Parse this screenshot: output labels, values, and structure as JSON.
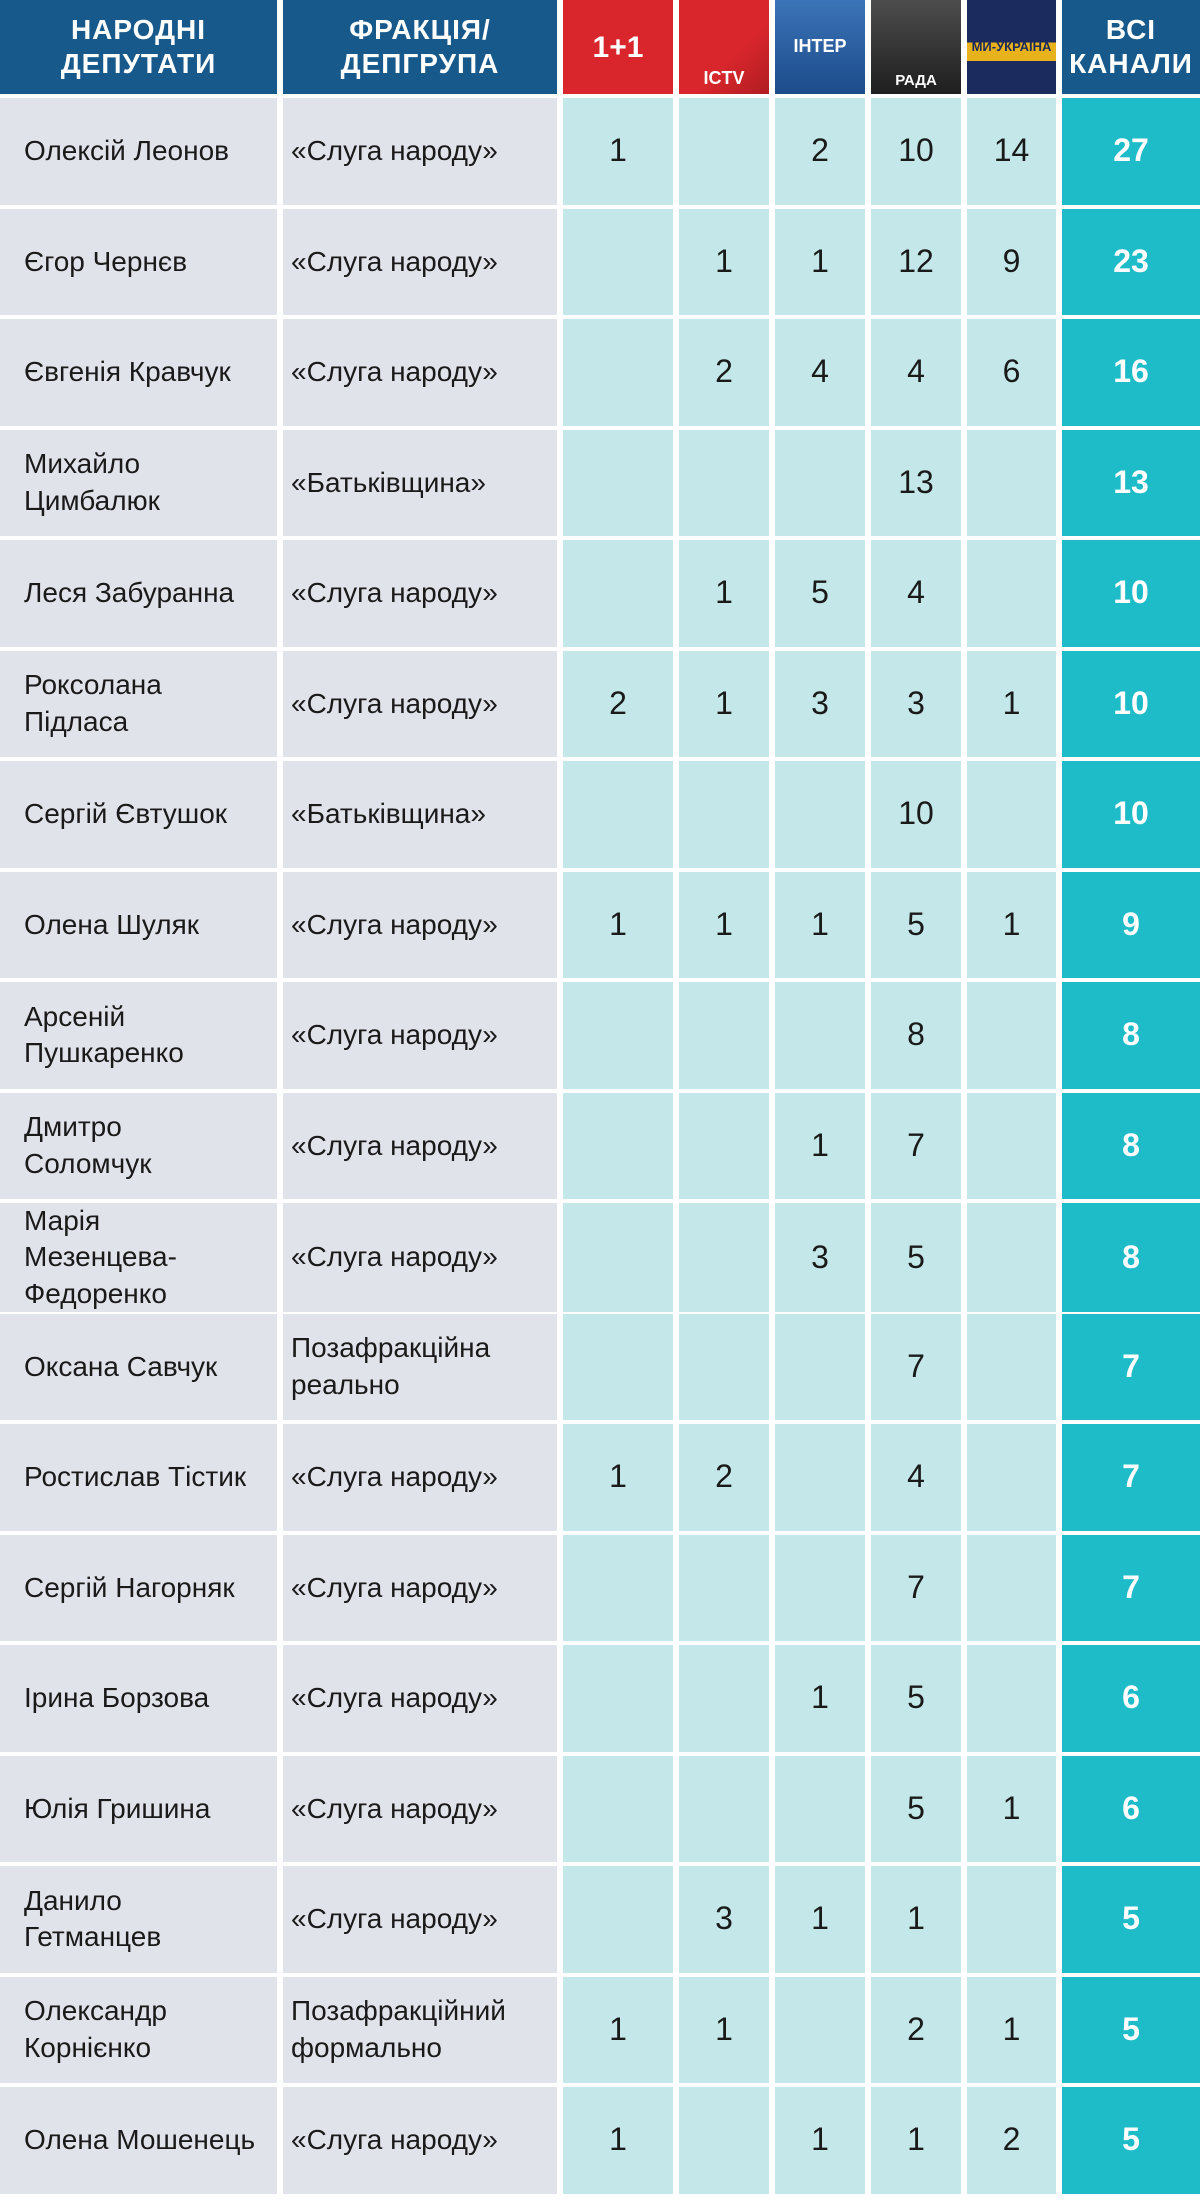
{
  "header": {
    "name": "НАРОДНІ\nДЕПУТАТИ",
    "faction": "ФРАКЦІЯ/\nДЕПГРУПА",
    "total": "ВСІ\nКАНАЛИ",
    "channels": [
      "1+1",
      "ICTV",
      "ІНТЕР",
      "РАДА",
      "МИ-УКРАЇНА"
    ]
  },
  "table": {
    "rows": [
      {
        "name": "Олексій Леонов",
        "faction": "«Слуга народу»",
        "channels": [
          1,
          null,
          2,
          10,
          14
        ],
        "total": 27
      },
      {
        "name": "Єгор Чернєв",
        "faction": "«Слуга народу»",
        "channels": [
          null,
          1,
          1,
          12,
          9
        ],
        "total": 23
      },
      {
        "name": "Євгенія Кравчук",
        "faction": "«Слуга народу»",
        "channels": [
          null,
          2,
          4,
          4,
          6
        ],
        "total": 16
      },
      {
        "name": "Михайло\nЦимбалюк",
        "faction": "«Батьківщина»",
        "channels": [
          null,
          null,
          null,
          13,
          null
        ],
        "total": 13
      },
      {
        "name": "Леся Забуранна",
        "faction": "«Слуга народу»",
        "channels": [
          null,
          1,
          5,
          4,
          null
        ],
        "total": 10
      },
      {
        "name": "Роксолана\nПідласа",
        "faction": "«Слуга народу»",
        "channels": [
          2,
          1,
          3,
          3,
          1
        ],
        "total": 10
      },
      {
        "name": "Сергій Євтушок",
        "faction": "«Батьківщина»",
        "channels": [
          null,
          null,
          null,
          10,
          null
        ],
        "total": 10
      },
      {
        "name": "Олена Шуляк",
        "faction": "«Слуга народу»",
        "channels": [
          1,
          1,
          1,
          5,
          1
        ],
        "total": 9
      },
      {
        "name": "Арсеній\nПушкаренко",
        "faction": "«Слуга народу»",
        "channels": [
          null,
          null,
          null,
          8,
          null
        ],
        "total": 8
      },
      {
        "name": "Дмитро\nСоломчук",
        "faction": "«Слуга народу»",
        "channels": [
          null,
          null,
          1,
          7,
          null
        ],
        "total": 8
      },
      {
        "name": "Марія\nМезенцева-\nФедоренко",
        "faction": "«Слуга народу»",
        "channels": [
          null,
          null,
          3,
          5,
          null
        ],
        "total": 8
      },
      {
        "name": "Оксана Савчук",
        "faction": "Позафракційна\nреально",
        "channels": [
          null,
          null,
          null,
          7,
          null
        ],
        "total": 7
      },
      {
        "name": "Ростислав Тістик",
        "faction": "«Слуга народу»",
        "channels": [
          1,
          2,
          null,
          4,
          null
        ],
        "total": 7
      },
      {
        "name": "Сергій Нагорняк",
        "faction": "«Слуга народу»",
        "channels": [
          null,
          null,
          null,
          7,
          null
        ],
        "total": 7
      },
      {
        "name": "Ірина Борзова",
        "faction": "«Слуга народу»",
        "channels": [
          null,
          null,
          1,
          5,
          null
        ],
        "total": 6
      },
      {
        "name": "Юлія Гришина",
        "faction": "«Слуга народу»",
        "channels": [
          null,
          null,
          null,
          5,
          1
        ],
        "total": 6
      },
      {
        "name": "Данило\nГетманцев",
        "faction": "«Слуга народу»",
        "channels": [
          null,
          3,
          1,
          1,
          null
        ],
        "total": 5
      },
      {
        "name": "Олександр\nКорнієнко",
        "faction": "Позафракційний\nформально",
        "channels": [
          1,
          1,
          null,
          2,
          1
        ],
        "total": 5
      },
      {
        "name": "Олена Мошенець",
        "faction": "«Слуга народу»",
        "channels": [
          1,
          null,
          1,
          1,
          2
        ],
        "total": 5
      }
    ]
  }
}
